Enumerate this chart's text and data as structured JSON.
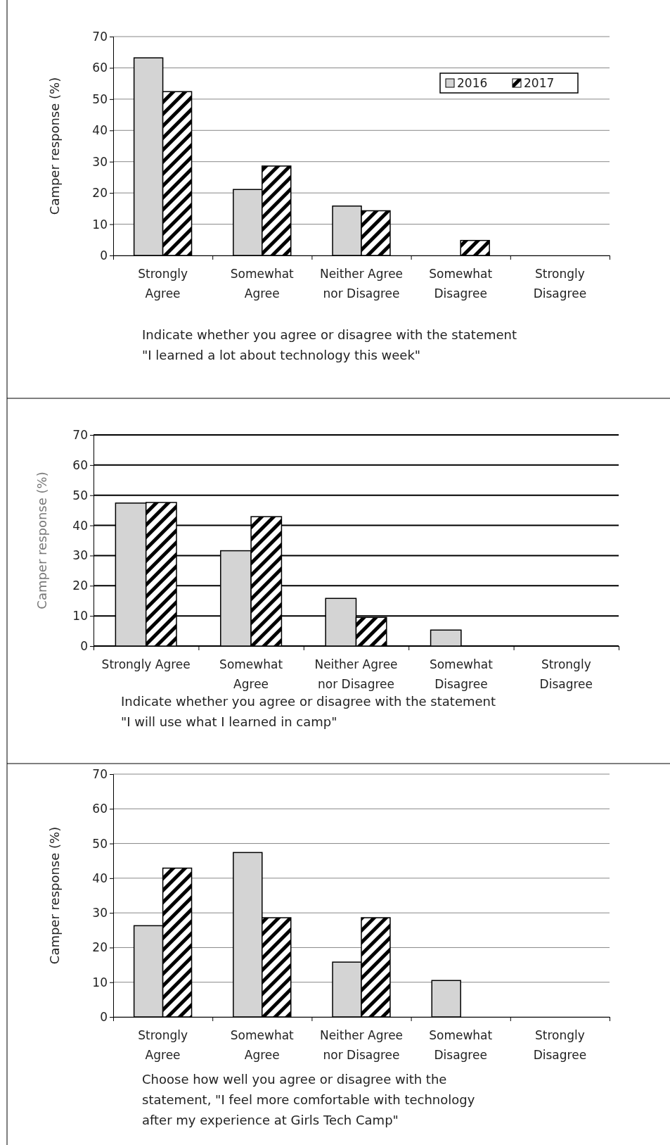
{
  "chart_data": [
    {
      "type": "bar",
      "categories": [
        "Strongly\nAgree",
        "Somewhat\nAgree",
        "Neither Agree\nnor Disagree",
        "Somewhat\nDisagree",
        "Strongly\nDisagree"
      ],
      "ylabel": "Camper response (%)",
      "xlabel": "Indicate whether you agree or disagree with the statement\n\"I learned a lot about technology this week\"",
      "ylim": [
        0,
        70
      ],
      "yticks": [
        0,
        10,
        20,
        30,
        40,
        50,
        60,
        70
      ],
      "grid": "y",
      "legend": "top right",
      "series": [
        {
          "name": "2016",
          "color": "#d4d4d4",
          "values": [
            63.2,
            21.1,
            15.8,
            0,
            0
          ]
        },
        {
          "name": "2017",
          "color": "#000000",
          "values": [
            52.4,
            28.6,
            14.3,
            4.8,
            0
          ]
        }
      ]
    },
    {
      "type": "bar",
      "categories": [
        "Strongly Agree",
        "Somewhat\nAgree",
        "Neither Agree\nnor Disagree",
        "Somewhat\nDisagree",
        "Strongly\nDisagree"
      ],
      "ylabel": "Camper response (%)",
      "xlabel": "Indicate whether you agree or disagree with the statement\n\"I will use what I learned in camp\"",
      "ylim": [
        0,
        70
      ],
      "yticks": [
        0,
        10,
        20,
        30,
        40,
        50,
        60,
        70
      ],
      "grid": "y",
      "series": [
        {
          "color": "#d4d4d4",
          "values": [
            47.4,
            31.6,
            15.8,
            5.3,
            0
          ]
        },
        {
          "color": "#000000",
          "values": [
            47.6,
            42.9,
            9.5,
            0,
            0
          ]
        }
      ]
    },
    {
      "type": "bar",
      "categories": [
        "Strongly\nAgree",
        "Somewhat\nAgree",
        "Neither Agree\nnor Disagree",
        "Somewhat\nDisagree",
        "Strongly\nDisagree"
      ],
      "ylabel": "Camper response (%)",
      "xlabel": "Choose how well you agree or disagree with the\nstatement, \"I feel more comfortable with technology\nafter my experience at Girls Tech Camp\"",
      "ylim": [
        0,
        70
      ],
      "yticks": [
        0,
        10,
        20,
        30,
        40,
        50,
        60,
        70
      ],
      "grid": "y",
      "series": [
        {
          "color": "#d4d4d4",
          "values": [
            26.3,
            47.4,
            15.8,
            10.5,
            0
          ]
        },
        {
          "color": "#000000",
          "values": [
            42.9,
            28.6,
            28.6,
            0,
            0
          ]
        }
      ]
    }
  ]
}
